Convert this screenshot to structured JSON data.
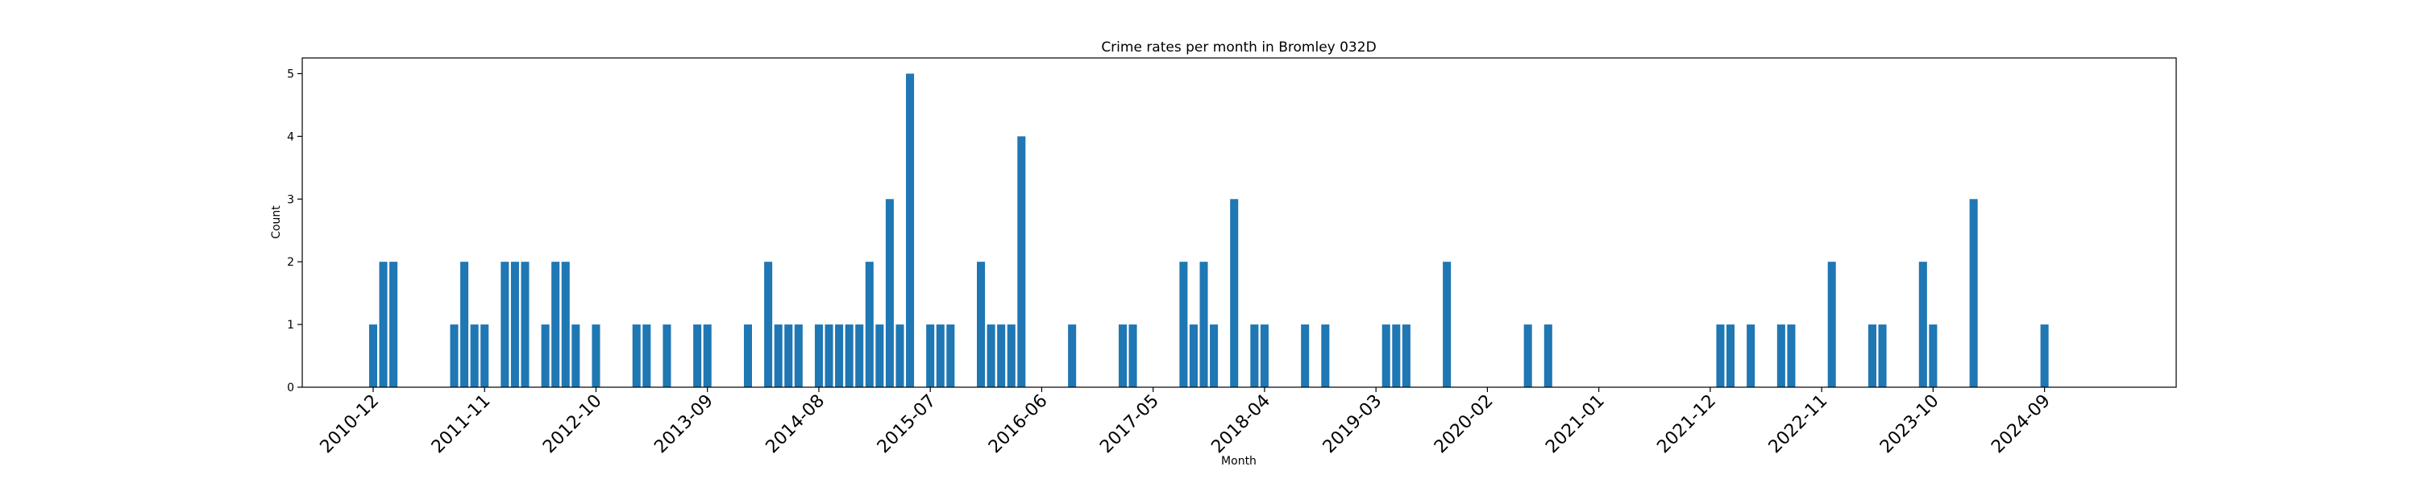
{
  "chart_data": {
    "type": "bar",
    "title": "Crime rates per month in Bromley 032D",
    "xlabel": "Month",
    "ylabel": "Count",
    "ylim": [
      0,
      5.25
    ],
    "yticks": [
      0,
      1,
      2,
      3,
      4,
      5
    ],
    "xticks": [
      "2010-12",
      "2011-11",
      "2012-10",
      "2013-09",
      "2014-08",
      "2015-07",
      "2016-06",
      "2017-05",
      "2018-04",
      "2019-03",
      "2020-02",
      "2021-01",
      "2021-12",
      "2022-11",
      "2023-10",
      "2024-09"
    ],
    "xlim": [
      "2010-05",
      "2025-10"
    ],
    "grid": false,
    "bar_color": "#1f77b4",
    "categories": [
      "2010-12",
      "2011-01",
      "2011-02",
      "2011-08",
      "2011-09",
      "2011-10",
      "2011-11",
      "2012-01",
      "2012-02",
      "2012-03",
      "2012-05",
      "2012-06",
      "2012-07",
      "2012-08",
      "2012-10",
      "2013-02",
      "2013-03",
      "2013-05",
      "2013-08",
      "2013-09",
      "2014-01",
      "2014-03",
      "2014-04",
      "2014-05",
      "2014-06",
      "2014-08",
      "2014-09",
      "2014-10",
      "2014-11",
      "2014-12",
      "2015-01",
      "2015-02",
      "2015-03",
      "2015-04",
      "2015-05",
      "2015-07",
      "2015-08",
      "2015-09",
      "2015-12",
      "2016-01",
      "2016-02",
      "2016-03",
      "2016-04",
      "2016-09",
      "2017-02",
      "2017-03",
      "2017-08",
      "2017-09",
      "2017-10",
      "2017-11",
      "2018-01",
      "2018-03",
      "2018-04",
      "2018-08",
      "2018-10",
      "2019-04",
      "2019-05",
      "2019-06",
      "2019-10",
      "2020-06",
      "2020-08",
      "2022-01",
      "2022-02",
      "2022-04",
      "2022-07",
      "2022-08",
      "2022-12",
      "2023-04",
      "2023-05",
      "2023-09",
      "2023-10",
      "2024-02",
      "2024-09"
    ],
    "values": [
      1,
      2,
      2,
      1,
      2,
      1,
      1,
      2,
      2,
      2,
      1,
      2,
      2,
      1,
      1,
      1,
      1,
      1,
      1,
      1,
      1,
      2,
      1,
      1,
      1,
      1,
      1,
      1,
      1,
      1,
      2,
      1,
      3,
      1,
      5,
      1,
      1,
      1,
      2,
      1,
      1,
      1,
      4,
      1,
      1,
      1,
      2,
      1,
      2,
      1,
      3,
      1,
      1,
      1,
      1,
      1,
      1,
      1,
      2,
      1,
      1,
      1,
      1,
      1,
      1,
      1,
      2,
      1,
      1,
      2,
      1,
      3,
      1
    ]
  }
}
